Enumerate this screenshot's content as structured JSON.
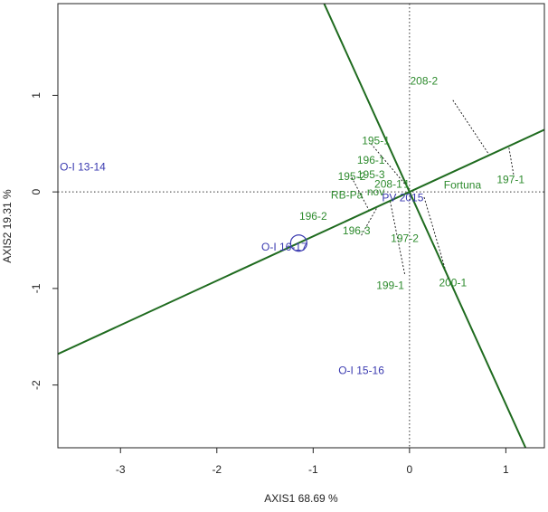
{
  "chart_data": {
    "type": "scatter",
    "subtype": "GGE biplot (which-won-where / discriminativeness)",
    "title": "",
    "xlabel": "AXIS1 68.69 %",
    "ylabel": "AXIS2 19.31 %",
    "xlim": [
      -3.65,
      1.4
    ],
    "ylim": [
      -2.65,
      1.95
    ],
    "xticks": [
      -3,
      -2,
      -1,
      0,
      1
    ],
    "yticks": [
      -2,
      -1,
      0,
      1
    ],
    "reference_lines": {
      "x": 0,
      "y": 0
    },
    "colors": {
      "genotype": "#2e8b2e",
      "environment": "#3a3ab0",
      "axis_line": "#1f6b1f",
      "projection": "#111111",
      "reference": "#333333"
    },
    "average_environment": {
      "x": -1.15,
      "y": -0.53
    },
    "lines": [
      {
        "name": "average-environment-axis",
        "slope": 0.46,
        "intercept": 0.0
      },
      {
        "name": "perpendicular-axis",
        "slope": -2.2,
        "intercept": 0.0
      }
    ],
    "genotypes": [
      {
        "label": "208-2",
        "x": 0.15,
        "y": 1.15,
        "tx": 0.15,
        "ty": 1.15
      },
      {
        "label": "197-1",
        "x": 1.05,
        "y": 0.13,
        "tx": 1.05,
        "ty": 0.13
      },
      {
        "label": "Fortuna",
        "x": 0.55,
        "y": 0.07,
        "tx": 0.55,
        "ty": 0.07
      },
      {
        "label": "195-1",
        "x": -0.35,
        "y": 0.53,
        "tx": -0.35,
        "ty": 0.53
      },
      {
        "label": "196-1",
        "x": -0.4,
        "y": 0.33,
        "tx": -0.4,
        "ty": 0.33
      },
      {
        "label": "195-3",
        "x": -0.4,
        "y": 0.18,
        "tx": -0.4,
        "ty": 0.18
      },
      {
        "label": "195-2",
        "x": -0.6,
        "y": 0.16,
        "tx": -0.6,
        "ty": 0.16
      },
      {
        "label": "208-1",
        "x": -0.22,
        "y": 0.08,
        "tx": -0.22,
        "ty": 0.08
      },
      {
        "label": "1",
        "x": -0.03,
        "y": 0.08,
        "tx": -0.03,
        "ty": 0.08
      },
      {
        "label": "RB-Pa",
        "x": -0.65,
        "y": -0.03,
        "tx": -0.65,
        "ty": -0.03
      },
      {
        "label": "nov",
        "x": -0.35,
        "y": 0.0,
        "tx": -0.35,
        "ty": 0.0
      },
      {
        "label": "196-2",
        "x": -1.0,
        "y": -0.25,
        "tx": -1.0,
        "ty": -0.25
      },
      {
        "label": "196-3",
        "x": -0.55,
        "y": -0.4,
        "tx": -0.55,
        "ty": -0.4
      },
      {
        "label": "197-2",
        "x": -0.05,
        "y": -0.48,
        "tx": -0.05,
        "ty": -0.48
      },
      {
        "label": "199-1",
        "x": -0.2,
        "y": -0.97,
        "tx": -0.2,
        "ty": -0.97
      },
      {
        "label": "200-1",
        "x": 0.45,
        "y": -0.94,
        "tx": 0.45,
        "ty": -0.94
      }
    ],
    "environments": [
      {
        "label": "O-I 13-14",
        "x": -3.63,
        "y": 0.26
      },
      {
        "label": "O-I 16-17",
        "x": -1.3,
        "y": -0.57
      },
      {
        "label": "O-I 15-16",
        "x": -0.5,
        "y": -1.85
      },
      {
        "label": "PV 2015",
        "x": -0.07,
        "y": -0.06
      }
    ],
    "projections": [
      {
        "from": [
          0.45,
          0.95
        ],
        "to": [
          0.83,
          0.38
        ]
      },
      {
        "from": [
          1.08,
          0.18
        ],
        "to": [
          1.03,
          0.47
        ]
      },
      {
        "from": [
          -0.4,
          0.5
        ],
        "to": [
          -0.03,
          0.06
        ]
      },
      {
        "from": [
          -0.6,
          0.15
        ],
        "to": [
          -0.42,
          -0.19
        ]
      },
      {
        "from": [
          -0.5,
          -0.45
        ],
        "to": [
          -0.33,
          -0.15
        ]
      },
      {
        "from": [
          -0.05,
          -0.85
        ],
        "to": [
          -0.2,
          -0.1
        ]
      },
      {
        "from": [
          0.4,
          -0.9
        ],
        "to": [
          0.15,
          -0.05
        ]
      }
    ]
  }
}
